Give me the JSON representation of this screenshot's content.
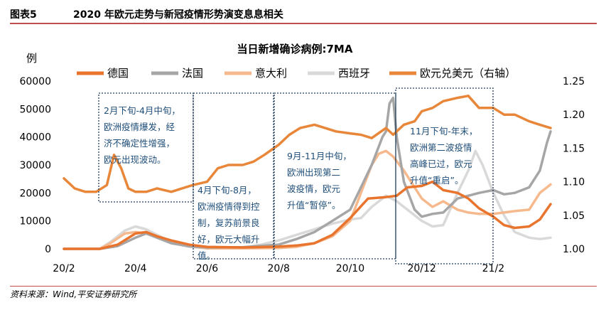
{
  "figure": {
    "number": "图表5",
    "title": "2020 年欧元走势与新冠疫情形势演变息息相关",
    "source": "资料来源：Wind,平安证券研究所"
  },
  "colors": {
    "germany": "#e8742e",
    "france": "#a6a6a6",
    "italy": "#f6b98d",
    "spain": "#d9d9d9",
    "eurusd": "#e8863a",
    "accent_rule": "#c0504d",
    "annotation_text": "#1f4e79",
    "box_border": "#1f3b5a"
  },
  "annotations": [
    {
      "lines": [
        "2月下旬-4月中旬，",
        "欧洲疫情爆发，经",
        "济不确定性增强，",
        "欧元出现波动。"
      ]
    },
    {
      "lines": [
        "4月下旬-8月，",
        "欧洲疫情得到控",
        "制，复苏前景良",
        "好，欧元大幅升",
        "值。"
      ]
    },
    {
      "lines": [
        "9月-11月中旬，",
        "欧洲出现第二",
        "波疫情，欧元",
        "升值“暂停”。"
      ]
    },
    {
      "lines": [
        "11月下旬-年末，",
        "欧洲第二波疫情",
        "高峰已过，欧元",
        "升值“重启”。"
      ]
    }
  ],
  "chart_data": {
    "type": "line",
    "title": "当日新增确诊病例:7MA",
    "ylabel": "例",
    "ylim": [
      0,
      60000
    ],
    "yticks": [
      "0",
      "10000",
      "20000",
      "30000",
      "40000",
      "50000",
      "60000"
    ],
    "y2lim": [
      1.0,
      1.25
    ],
    "y2ticks": [
      "1.00",
      "1.05",
      "1.10",
      "1.15",
      "1.20",
      "1.25"
    ],
    "xticks": [
      "20/2",
      "20/4",
      "20/6",
      "20/8",
      "20/10",
      "20/12",
      "21/2"
    ],
    "xlim_months": [
      0,
      13.6
    ],
    "legend_position": "top",
    "grid": false,
    "series": [
      {
        "name": "德国",
        "axis": "left",
        "key": "germany",
        "points": [
          [
            0,
            0
          ],
          [
            1,
            0
          ],
          [
            1.5,
            1500
          ],
          [
            2,
            5500
          ],
          [
            2.3,
            6000
          ],
          [
            2.6,
            4500
          ],
          [
            3,
            3000
          ],
          [
            3.5,
            1500
          ],
          [
            4,
            700
          ],
          [
            5,
            500
          ],
          [
            6,
            800
          ],
          [
            6.5,
            1200
          ],
          [
            7,
            2000
          ],
          [
            7.5,
            5000
          ],
          [
            8,
            11000
          ],
          [
            8.5,
            18000
          ],
          [
            9,
            18500
          ],
          [
            9.3,
            19000
          ],
          [
            9.6,
            22000
          ],
          [
            10,
            22500
          ],
          [
            10.3,
            24000
          ],
          [
            10.6,
            21000
          ],
          [
            11,
            20000
          ],
          [
            11.3,
            18000
          ],
          [
            11.6,
            14500
          ],
          [
            12,
            11500
          ],
          [
            12.3,
            8500
          ],
          [
            12.6,
            7500
          ],
          [
            13,
            8000
          ],
          [
            13.3,
            10500
          ],
          [
            13.6,
            16000
          ]
        ]
      },
      {
        "name": "法国",
        "axis": "left",
        "key": "france",
        "points": [
          [
            0,
            0
          ],
          [
            1,
            0
          ],
          [
            1.5,
            1000
          ],
          [
            2,
            4000
          ],
          [
            2.3,
            5500
          ],
          [
            2.6,
            4000
          ],
          [
            3,
            2000
          ],
          [
            3.5,
            900
          ],
          [
            4,
            500
          ],
          [
            5,
            600
          ],
          [
            6,
            1500
          ],
          [
            6.5,
            3500
          ],
          [
            7,
            6000
          ],
          [
            7.5,
            10000
          ],
          [
            8,
            14000
          ],
          [
            8.3,
            22000
          ],
          [
            8.6,
            30000
          ],
          [
            8.9,
            40000
          ],
          [
            9,
            42000
          ],
          [
            9.1,
            52000
          ],
          [
            9.2,
            54000
          ],
          [
            9.3,
            40000
          ],
          [
            9.5,
            24000
          ],
          [
            9.8,
            14000
          ],
          [
            10,
            11500
          ],
          [
            10.3,
            12500
          ],
          [
            10.6,
            13000
          ],
          [
            11,
            18000
          ],
          [
            11.3,
            19000
          ],
          [
            11.6,
            20000
          ],
          [
            12,
            21000
          ],
          [
            12.3,
            19500
          ],
          [
            12.6,
            20000
          ],
          [
            13,
            22000
          ],
          [
            13.3,
            28000
          ],
          [
            13.5,
            38000
          ],
          [
            13.6,
            42000
          ]
        ]
      },
      {
        "name": "意大利",
        "axis": "left",
        "key": "italy",
        "points": [
          [
            0,
            0
          ],
          [
            1,
            0
          ],
          [
            1.3,
            2000
          ],
          [
            1.7,
            5500
          ],
          [
            2,
            6000
          ],
          [
            2.3,
            5500
          ],
          [
            2.6,
            4000
          ],
          [
            3,
            2500
          ],
          [
            3.5,
            1000
          ],
          [
            4,
            200
          ],
          [
            5,
            200
          ],
          [
            6,
            300
          ],
          [
            6.5,
            700
          ],
          [
            7,
            2000
          ],
          [
            7.5,
            4500
          ],
          [
            8,
            10000
          ],
          [
            8.3,
            20000
          ],
          [
            8.6,
            30000
          ],
          [
            8.8,
            34000
          ],
          [
            9,
            35000
          ],
          [
            9.2,
            33000
          ],
          [
            9.5,
            28000
          ],
          [
            9.8,
            22000
          ],
          [
            10,
            18000
          ],
          [
            10.3,
            15000
          ],
          [
            10.6,
            17000
          ],
          [
            11,
            14000
          ],
          [
            11.3,
            13000
          ],
          [
            11.6,
            12500
          ],
          [
            12,
            12500
          ],
          [
            12.3,
            13000
          ],
          [
            12.6,
            13500
          ],
          [
            13,
            14000
          ],
          [
            13.3,
            20000
          ],
          [
            13.6,
            23000
          ]
        ]
      },
      {
        "name": "西班牙",
        "axis": "left",
        "key": "spain",
        "points": [
          [
            0,
            0
          ],
          [
            1,
            0
          ],
          [
            1.3,
            2500
          ],
          [
            1.7,
            6500
          ],
          [
            2,
            8000
          ],
          [
            2.3,
            7000
          ],
          [
            2.6,
            5000
          ],
          [
            3,
            2500
          ],
          [
            3.5,
            800
          ],
          [
            4,
            200
          ],
          [
            5,
            300
          ],
          [
            5.5,
            1500
          ],
          [
            6,
            3000
          ],
          [
            6.5,
            5000
          ],
          [
            7,
            7000
          ],
          [
            7.5,
            9000
          ],
          [
            8,
            10500
          ],
          [
            8.3,
            11000
          ],
          [
            8.6,
            15000
          ],
          [
            8.9,
            18000
          ],
          [
            9,
            19000
          ],
          [
            9.3,
            17000
          ],
          [
            9.6,
            14000
          ],
          [
            10,
            10000
          ],
          [
            10.3,
            8000
          ],
          [
            10.6,
            8500
          ],
          [
            11,
            20000
          ],
          [
            11.3,
            28000
          ],
          [
            11.5,
            35000
          ],
          [
            11.7,
            30000
          ],
          [
            12,
            20000
          ],
          [
            12.3,
            12000
          ],
          [
            12.6,
            6000
          ],
          [
            13,
            4000
          ],
          [
            13.3,
            3500
          ],
          [
            13.6,
            4000
          ]
        ]
      },
      {
        "name": "欧元兑美元（右轴）",
        "axis": "right",
        "key": "eurusd",
        "points": [
          [
            0,
            1.105
          ],
          [
            0.3,
            1.09
          ],
          [
            0.6,
            1.085
          ],
          [
            0.9,
            1.085
          ],
          [
            1.2,
            1.095
          ],
          [
            1.4,
            1.14
          ],
          [
            1.6,
            1.12
          ],
          [
            1.8,
            1.09
          ],
          [
            2,
            1.085
          ],
          [
            2.3,
            1.085
          ],
          [
            2.6,
            1.09
          ],
          [
            3,
            1.085
          ],
          [
            3.3,
            1.09
          ],
          [
            3.6,
            1.095
          ],
          [
            4,
            1.1
          ],
          [
            4.3,
            1.12
          ],
          [
            4.6,
            1.125
          ],
          [
            5,
            1.125
          ],
          [
            5.3,
            1.13
          ],
          [
            5.6,
            1.14
          ],
          [
            6,
            1.155
          ],
          [
            6.3,
            1.17
          ],
          [
            6.6,
            1.18
          ],
          [
            7,
            1.185
          ],
          [
            7.3,
            1.18
          ],
          [
            7.6,
            1.175
          ],
          [
            8,
            1.172
          ],
          [
            8.3,
            1.17
          ],
          [
            8.6,
            1.165
          ],
          [
            9,
            1.18
          ],
          [
            9.2,
            1.17
          ],
          [
            9.5,
            1.185
          ],
          [
            9.8,
            1.19
          ],
          [
            10,
            1.205
          ],
          [
            10.3,
            1.21
          ],
          [
            10.6,
            1.22
          ],
          [
            11,
            1.225
          ],
          [
            11.3,
            1.228
          ],
          [
            11.6,
            1.21
          ],
          [
            12,
            1.21
          ],
          [
            12.3,
            1.2
          ],
          [
            12.6,
            1.2
          ],
          [
            13,
            1.19
          ],
          [
            13.3,
            1.185
          ],
          [
            13.6,
            1.18
          ]
        ]
      }
    ]
  }
}
